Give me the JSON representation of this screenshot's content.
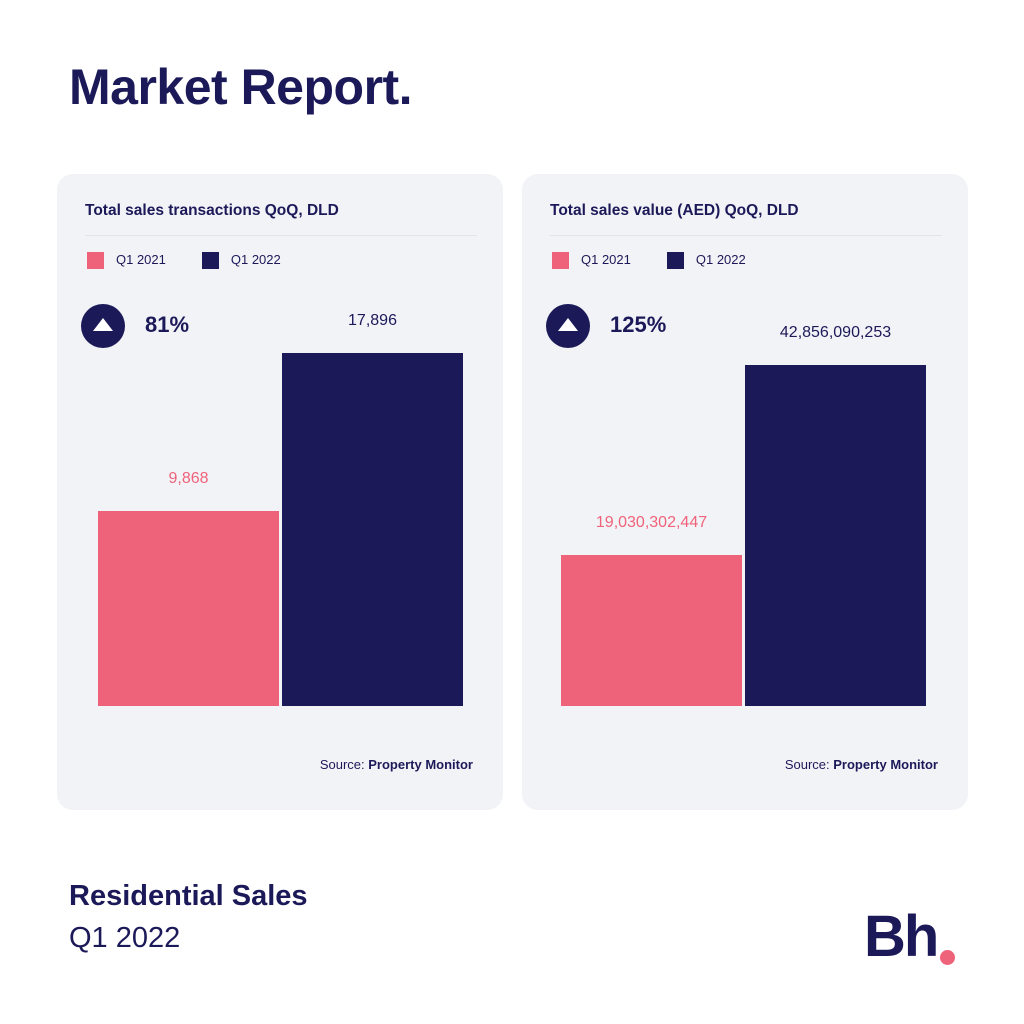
{
  "title": "Market Report.",
  "colors": {
    "q1_2021": "#ef637a",
    "q1_2022": "#1c1959"
  },
  "chart_data": [
    {
      "type": "bar",
      "title": "Total sales transactions QoQ, DLD",
      "categories": [
        "Q1 2021",
        "Q1 2022"
      ],
      "values": [
        9868,
        17896
      ],
      "value_labels": [
        "9,868",
        "17,896"
      ],
      "change_icon": "arrow-up-icon",
      "change": "81%",
      "ylim": [
        0,
        18250
      ],
      "legend": [
        "Q1 2021",
        "Q1 2022"
      ],
      "legend_position": "top-left",
      "source_prefix": "Source:",
      "source": "Property Monitor"
    },
    {
      "type": "bar",
      "title": "Total sales value (AED) QoQ, DLD",
      "categories": [
        "Q1 2021",
        "Q1 2022"
      ],
      "values": [
        19030302447,
        42856090253
      ],
      "value_labels": [
        "19,030,302,447",
        "42,856,090,253"
      ],
      "change_icon": "arrow-up-icon",
      "change": "125%",
      "ylim": [
        0,
        45240000000
      ],
      "legend": [
        "Q1 2021",
        "Q1 2022"
      ],
      "legend_position": "top-left",
      "source_prefix": "Source:",
      "source": "Property Monitor"
    }
  ],
  "footer": {
    "line1": "Residential Sales",
    "line2": "Q1 2022",
    "logo": "Bh."
  }
}
